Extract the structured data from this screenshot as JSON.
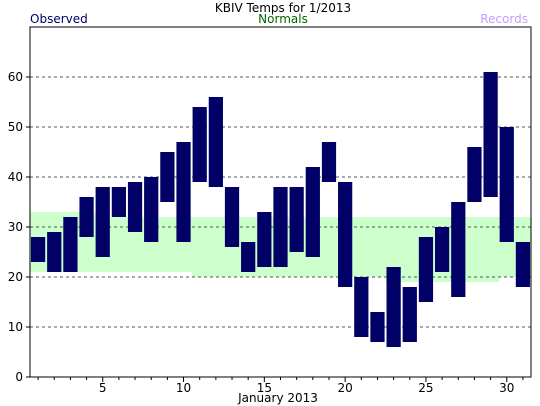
{
  "chart_data": {
    "type": "bar",
    "title": "KBIV Temps for 1/2013",
    "xlabel": "January 2013",
    "ylabel": "",
    "legend": [
      {
        "name": "Observed",
        "color": "#000066",
        "placement": "top-left"
      },
      {
        "name": "Normals",
        "color": "#006600",
        "placement": "top-center"
      },
      {
        "name": "Records",
        "color": "#cc99ff",
        "placement": "top-right"
      }
    ],
    "xlim": [
      0.5,
      31.5
    ],
    "ylim": [
      0,
      70
    ],
    "x_ticks": [
      5,
      10,
      15,
      20,
      25,
      30
    ],
    "y_ticks": [
      0,
      10,
      20,
      30,
      40,
      50,
      60
    ],
    "grid": "horizontal-dashed",
    "colors": {
      "observed": "#000066",
      "normals": "#ccffcc",
      "axis": "#000000"
    },
    "days": [
      1,
      2,
      3,
      4,
      5,
      6,
      7,
      8,
      9,
      10,
      11,
      12,
      13,
      14,
      15,
      16,
      17,
      18,
      19,
      20,
      21,
      22,
      23,
      24,
      25,
      26,
      27,
      28,
      29,
      30,
      31
    ],
    "observed_high": [
      28,
      29,
      32,
      36,
      38,
      38,
      39,
      40,
      45,
      47,
      54,
      56,
      38,
      27,
      33,
      38,
      38,
      42,
      47,
      39,
      20,
      13,
      22,
      18,
      28,
      30,
      35,
      46,
      61,
      50,
      27
    ],
    "observed_low": [
      23,
      21,
      21,
      28,
      24,
      32,
      29,
      27,
      35,
      27,
      39,
      38,
      26,
      21,
      22,
      22,
      25,
      24,
      39,
      18,
      8,
      7,
      6,
      7,
      15,
      21,
      16,
      35,
      36,
      27,
      18
    ],
    "normal_high": [
      33,
      33,
      33,
      33,
      32,
      32,
      32,
      32,
      32,
      32,
      32,
      32,
      32,
      32,
      32,
      32,
      32,
      32,
      32,
      32,
      32,
      32,
      32,
      32,
      32,
      32,
      32,
      32,
      32,
      32,
      32
    ],
    "normal_low": [
      21,
      21,
      21,
      21,
      21,
      21,
      21,
      21,
      21,
      21,
      20,
      20,
      20,
      20,
      20,
      20,
      20,
      20,
      20,
      20,
      20,
      20,
      19,
      19,
      19,
      19,
      19,
      19,
      19,
      20,
      20
    ]
  }
}
